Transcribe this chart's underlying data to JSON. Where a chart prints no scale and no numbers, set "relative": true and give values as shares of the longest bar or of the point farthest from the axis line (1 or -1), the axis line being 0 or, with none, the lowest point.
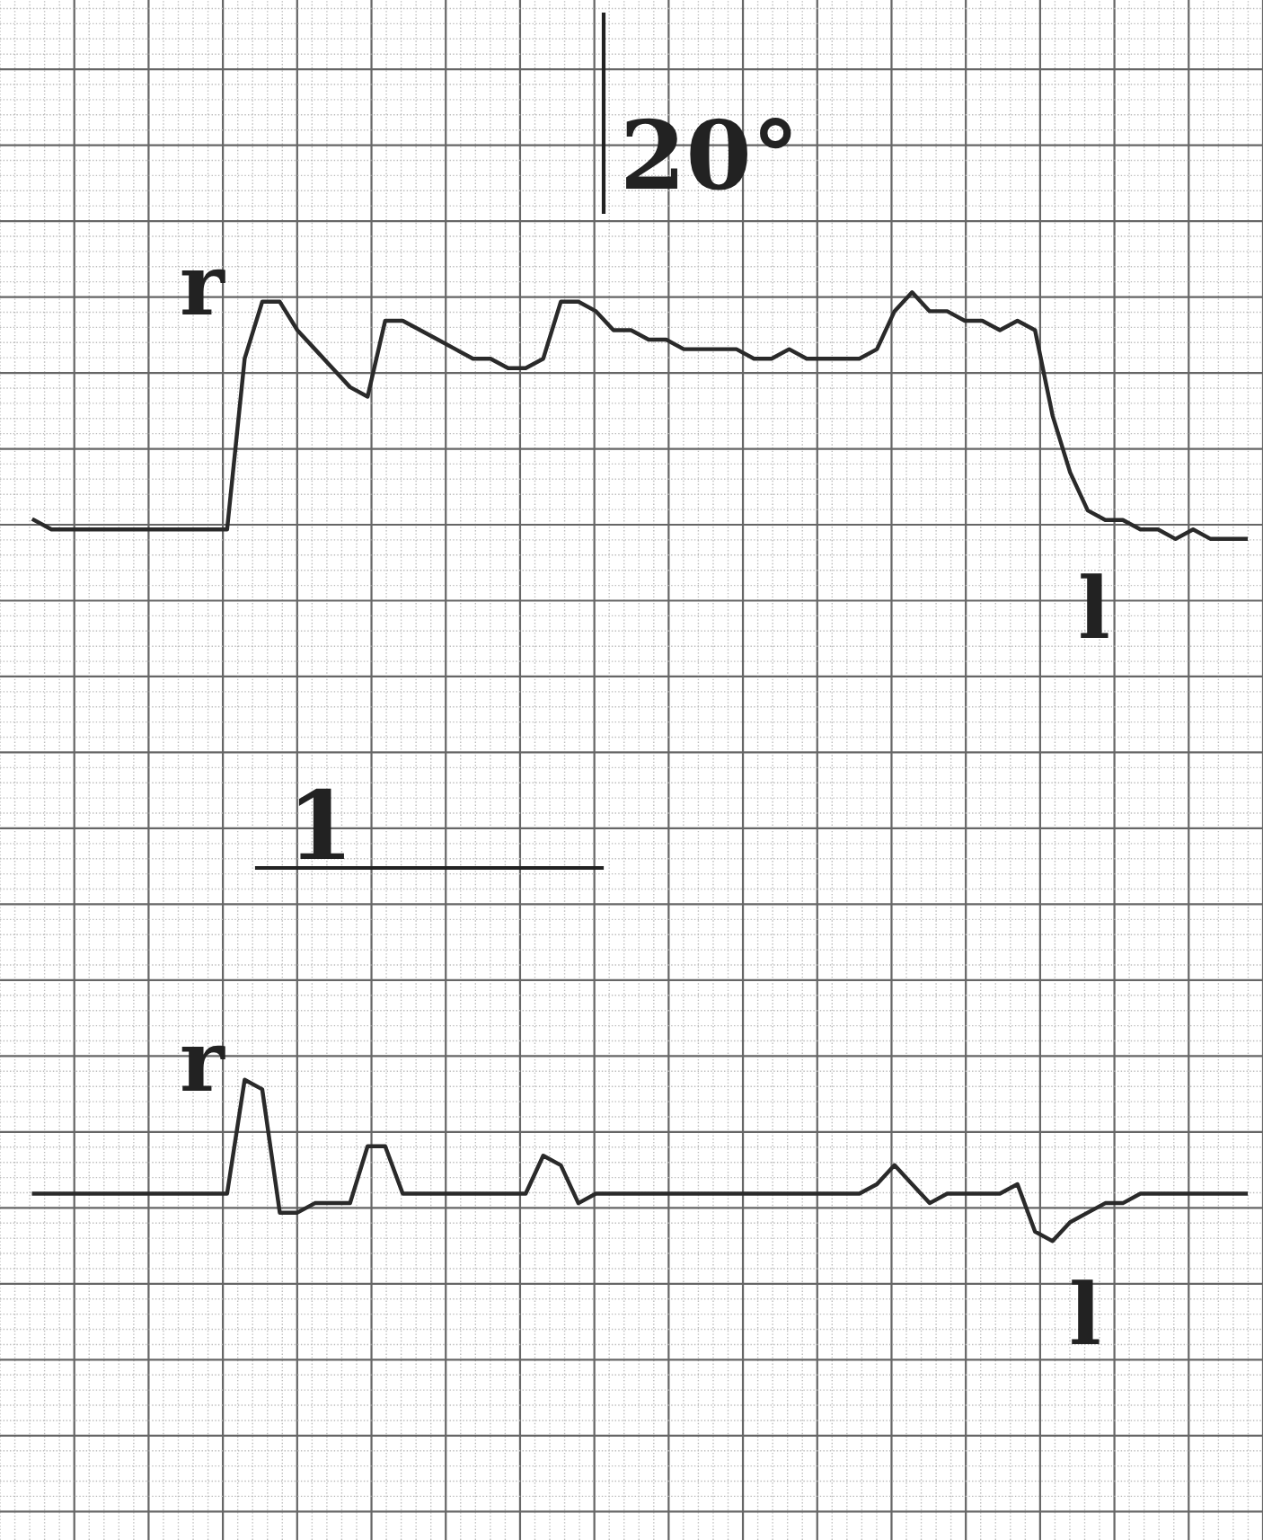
{
  "chart_data": {
    "type": "line",
    "relative": true,
    "grid": true,
    "legend": false,
    "marker": "none",
    "line_style": "solid",
    "annotations": [
      "20°",
      "r",
      "l",
      "1",
      "r",
      "l"
    ],
    "categories": [
      null,
      null,
      null,
      null,
      null,
      null,
      null,
      null,
      null,
      null,
      null,
      null,
      null,
      null,
      null,
      null,
      null,
      null,
      null,
      null,
      null,
      null,
      null,
      null,
      null,
      null,
      null,
      null,
      null,
      null,
      null,
      null,
      null,
      null,
      null,
      null,
      null,
      null,
      null,
      null,
      null,
      null,
      null,
      null,
      null,
      null,
      null,
      null,
      null,
      null,
      null,
      null,
      null,
      null,
      null,
      null,
      null,
      null,
      null,
      null,
      null,
      null,
      null,
      null,
      null,
      null,
      null,
      null,
      null,
      null
    ],
    "series": [
      {
        "color": "#2a2a2a",
        "values": [
          0.76,
          0.75,
          0.75,
          0.75,
          0.75,
          0.75,
          0.75,
          0.75,
          0.75,
          0.75,
          0.75,
          0.75,
          0.93,
          0.99,
          0.99,
          0.96,
          0.94,
          0.92,
          0.9,
          0.89,
          0.97,
          0.97,
          0.96,
          0.95,
          0.94,
          0.93,
          0.93,
          0.92,
          0.92,
          0.93,
          0.99,
          0.99,
          0.98,
          0.96,
          0.96,
          0.95,
          0.95,
          0.94,
          0.94,
          0.94,
          0.94,
          0.93,
          0.93,
          0.94,
          0.93,
          0.93,
          0.93,
          0.93,
          0.94,
          0.98,
          1.0,
          0.98,
          0.98,
          0.97,
          0.97,
          0.96,
          0.97,
          0.96,
          0.87,
          0.81,
          0.77,
          0.76,
          0.76,
          0.75,
          0.75,
          0.74,
          0.75,
          0.74,
          0.74,
          0.74
        ]
      },
      {
        "color": "#2a2a2a",
        "values": [
          0.05,
          0.05,
          0.05,
          0.05,
          0.05,
          0.05,
          0.05,
          0.05,
          0.05,
          0.05,
          0.05,
          0.05,
          0.17,
          0.16,
          0.03,
          0.03,
          0.04,
          0.04,
          0.04,
          0.1,
          0.1,
          0.05,
          0.05,
          0.05,
          0.05,
          0.05,
          0.05,
          0.05,
          0.05,
          0.09,
          0.08,
          0.04,
          0.05,
          0.05,
          0.05,
          0.05,
          0.05,
          0.05,
          0.05,
          0.05,
          0.05,
          0.05,
          0.05,
          0.05,
          0.05,
          0.05,
          0.05,
          0.05,
          0.06,
          0.08,
          0.06,
          0.04,
          0.05,
          0.05,
          0.05,
          0.05,
          0.06,
          0.01,
          0.0,
          0.02,
          0.03,
          0.04,
          0.04,
          0.05,
          0.05,
          0.05,
          0.05,
          0.05,
          0.05,
          0.05
        ]
      }
    ]
  }
}
